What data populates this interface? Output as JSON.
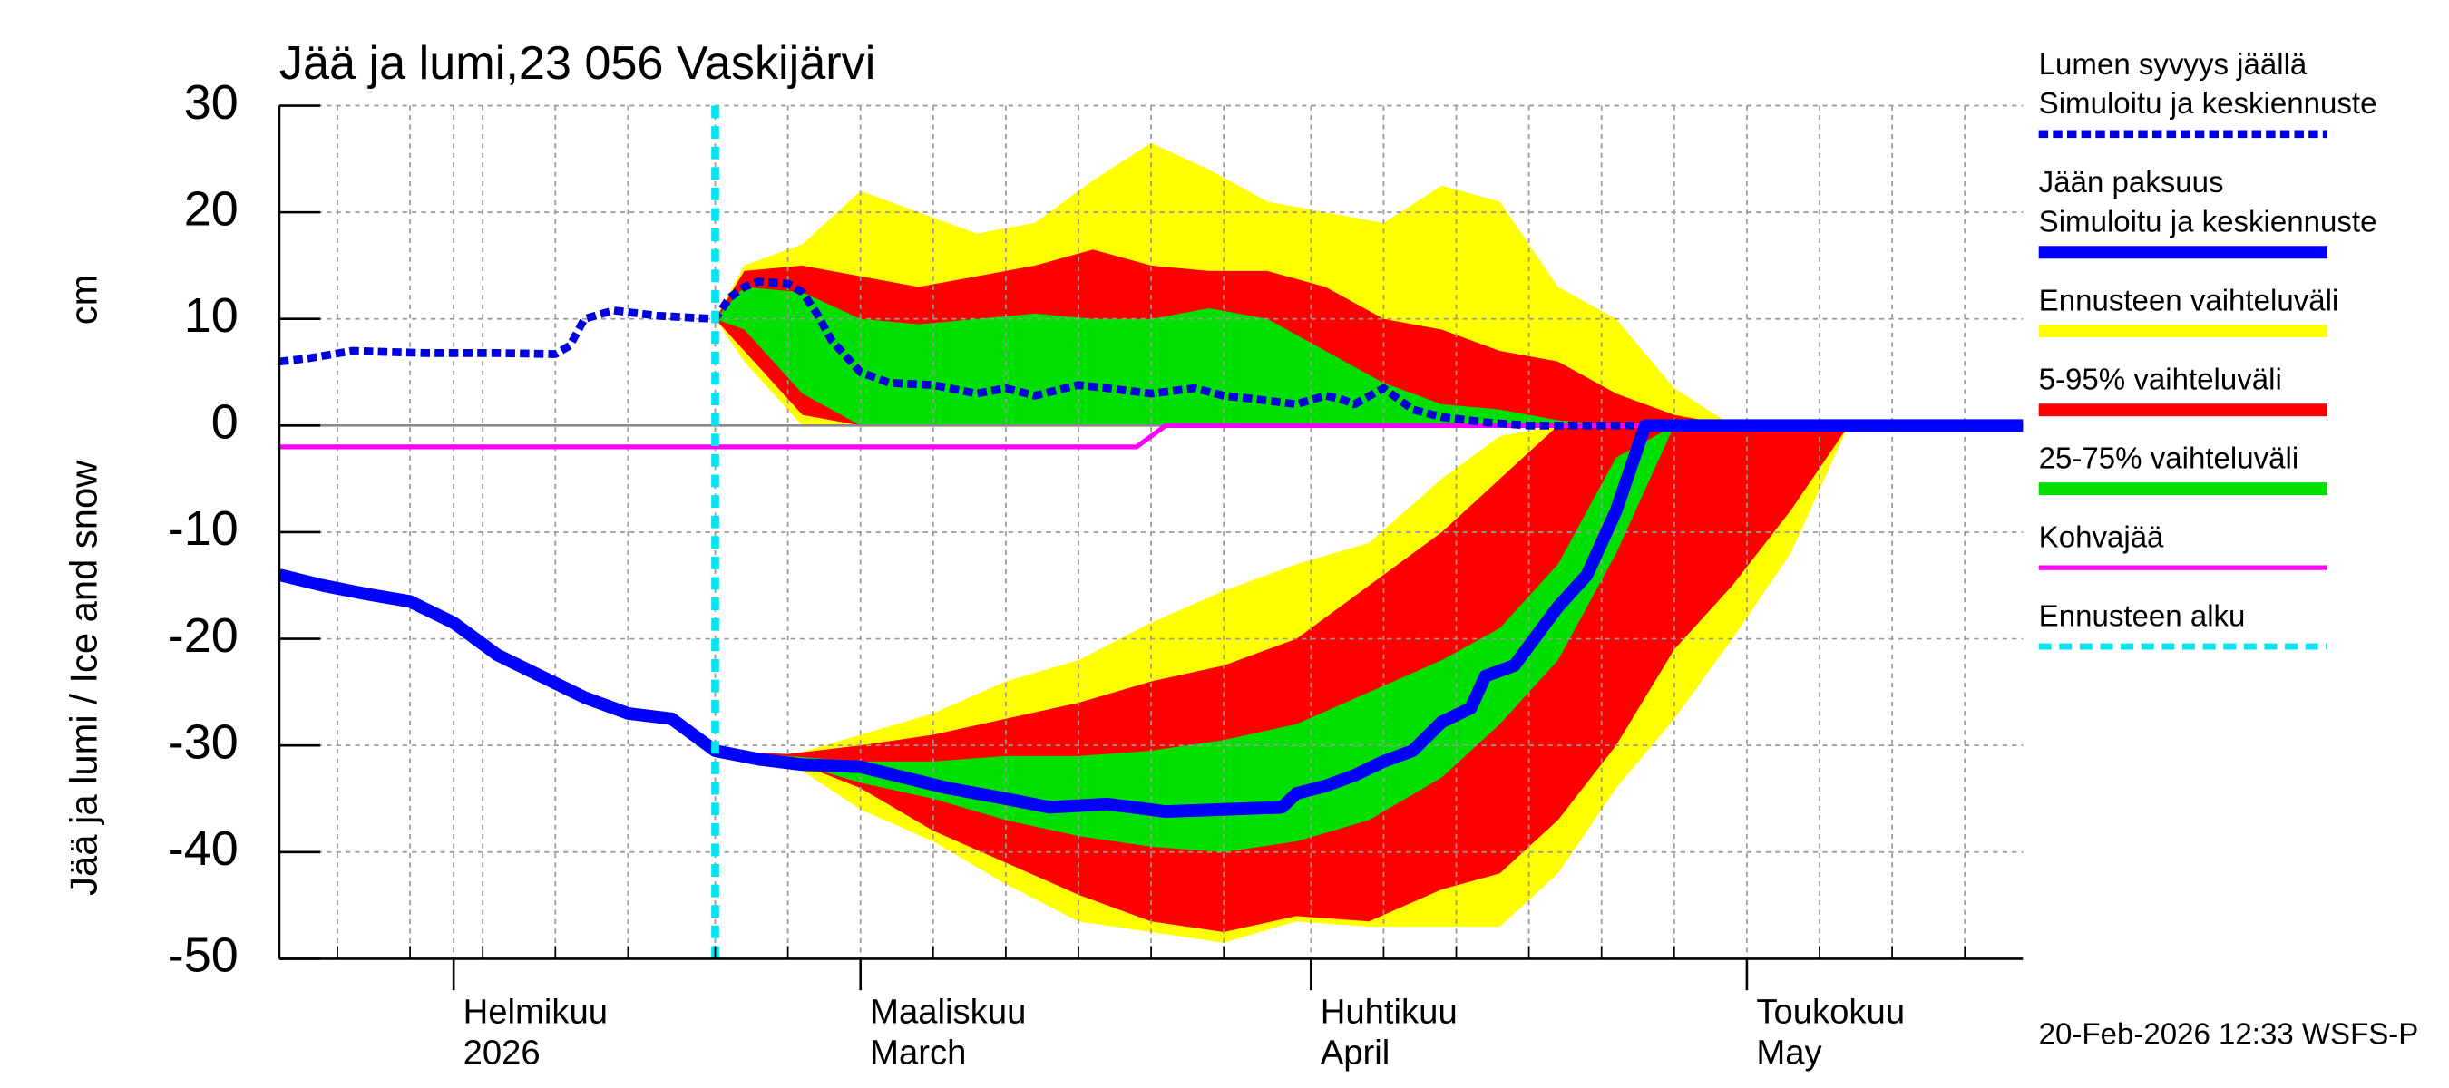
{
  "chart_data": {
    "type": "line",
    "title": "Jää ja lumi,23 056 Vaskijärvi",
    "ylabel": "Jää ja lumi / Ice and snow",
    "yunit": "cm",
    "footer": "20-Feb-2026 12:33 WSFS-P",
    "xlim": [
      0,
      120
    ],
    "ylim": [
      -50,
      30
    ],
    "yticks": [
      -50,
      -40,
      -30,
      -20,
      -10,
      0,
      10,
      20,
      30
    ],
    "xticks": [
      {
        "value": 12,
        "label": [
          "Helmikuu",
          "2026"
        ]
      },
      {
        "value": 40,
        "label": [
          "Maaliskuu",
          "March"
        ]
      },
      {
        "value": 71,
        "label": [
          "Huhtikuu",
          "April"
        ]
      },
      {
        "value": 101,
        "label": [
          "Toukokuu",
          "May"
        ]
      }
    ],
    "xminorticks": [
      4,
      9,
      14,
      19,
      24,
      30,
      35,
      45,
      50,
      55,
      60,
      65,
      76,
      81,
      86,
      91,
      96,
      106,
      111,
      116
    ],
    "grid": true,
    "series": [
      {
        "name": "Ennusteen vaihteluväli",
        "type": "band",
        "color": "#ffff00",
        "pieces": [
          {
            "x": [
              30,
              32,
              36,
              40,
              44,
              48,
              52,
              56,
              60,
              64,
              68,
              72,
              76,
              80,
              84,
              88,
              92,
              96,
              100
            ],
            "upper": [
              10,
              15,
              17,
              22,
              20,
              18,
              19,
              23,
              26.5,
              24,
              21,
              20,
              19,
              22.5,
              21,
              13,
              10,
              3.5,
              0
            ],
            "lower": [
              10,
              6,
              0,
              0,
              0,
              0,
              0,
              0,
              0,
              0,
              0,
              0,
              0,
              0,
              0,
              0,
              0,
              0,
              0
            ]
          },
          {
            "x": [
              30,
              35,
              40,
              45,
              50,
              55,
              60,
              65,
              70,
              75,
              80,
              84,
              88,
              92,
              96,
              100,
              104,
              108
            ],
            "upper": [
              -30.5,
              -31,
              -29,
              -27,
              -24,
              -22,
              -18.5,
              -15.5,
              -13,
              -11,
              -5,
              -1,
              0,
              0,
              0,
              0,
              0,
              0
            ],
            "lower": [
              -30.5,
              -31.5,
              -36,
              -39,
              -43,
              -46.5,
              -47.5,
              -48.5,
              -46.5,
              -47,
              -47,
              -47,
              -42,
              -34,
              -27.5,
              -20,
              -12,
              0
            ]
          }
        ]
      },
      {
        "name": "5-95% vaihteluväli",
        "type": "band",
        "color": "#ff0000",
        "pieces": [
          {
            "x": [
              30,
              32,
              36,
              40,
              44,
              48,
              52,
              56,
              60,
              64,
              68,
              72,
              76,
              80,
              84,
              88,
              92,
              96,
              100
            ],
            "upper": [
              10,
              14.5,
              15,
              14,
              13,
              14,
              15,
              16.5,
              15,
              14.5,
              14.5,
              13,
              10,
              9,
              7,
              6,
              3,
              1,
              0
            ],
            "lower": [
              10,
              7,
              1,
              0,
              0,
              0,
              0,
              0,
              0,
              0,
              0,
              0,
              0,
              0,
              0,
              0,
              0,
              0,
              0
            ]
          },
          {
            "x": [
              30,
              35,
              40,
              45,
              50,
              55,
              60,
              65,
              70,
              75,
              80,
              84,
              88,
              92,
              96,
              100,
              104,
              108
            ],
            "upper": [
              -30.5,
              -30.8,
              -30,
              -29,
              -27.5,
              -26,
              -24,
              -22.5,
              -20,
              -15,
              -10,
              -5,
              0,
              0,
              0,
              0,
              0,
              0
            ],
            "lower": [
              -30.5,
              -31.3,
              -34,
              -38,
              -41,
              -44,
              -46.5,
              -47.5,
              -46,
              -46.5,
              -43.5,
              -42,
              -37,
              -30,
              -21,
              -15,
              -8,
              0
            ]
          }
        ]
      },
      {
        "name": "25-75% vaihteluväli",
        "type": "band",
        "color": "#00e000",
        "pieces": [
          {
            "x": [
              30,
              32,
              36,
              40,
              44,
              48,
              52,
              56,
              60,
              64,
              68,
              72,
              76,
              80,
              84,
              88,
              92,
              96,
              100
            ],
            "upper": [
              10,
              13,
              12.5,
              10,
              9.5,
              10,
              10.5,
              10,
              10,
              11,
              10,
              7,
              4,
              2,
              1.5,
              0.5,
              0,
              0,
              0
            ],
            "lower": [
              10,
              9,
              3,
              0,
              0,
              0,
              0,
              0,
              0,
              0,
              0,
              0,
              0,
              0,
              0,
              0,
              0,
              0,
              0
            ]
          },
          {
            "x": [
              30,
              35,
              40,
              45,
              50,
              55,
              60,
              65,
              70,
              75,
              80,
              84,
              88,
              92,
              96,
              100,
              104,
              108
            ],
            "upper": [
              -30.5,
              -31,
              -31.5,
              -31.5,
              -31,
              -31,
              -30.5,
              -29.5,
              -28,
              -25,
              -22,
              -19,
              -13,
              -3,
              0,
              0,
              0,
              0
            ],
            "lower": [
              -30.5,
              -31.5,
              -33.5,
              -35,
              -37,
              -38.5,
              -39.5,
              -40,
              -39,
              -37,
              -33,
              -28,
              -22,
              -12,
              0,
              0,
              0,
              0
            ]
          }
        ]
      },
      {
        "name": "Kohvajää",
        "type": "line",
        "color": "#ff00ff",
        "width": 3,
        "x": [
          0,
          59,
          61,
          120
        ],
        "values": [
          -2,
          -2,
          0,
          0
        ]
      },
      {
        "name": [
          "Lumen syvyys jäällä",
          "Simuloitu ja keskiennuste"
        ],
        "type": "line",
        "color": "#0000dd",
        "width": 5,
        "dashed": true,
        "x": [
          0,
          2,
          5,
          10,
          15,
          19,
          20,
          21,
          23,
          26,
          30,
          31,
          32,
          33,
          35,
          36,
          37,
          38,
          40,
          42,
          45,
          48,
          50,
          52,
          55,
          57,
          60,
          63,
          65,
          67,
          70,
          72,
          73,
          74,
          76,
          78,
          80,
          83,
          86,
          90,
          120
        ],
        "values": [
          6,
          6.3,
          7,
          6.8,
          6.8,
          6.7,
          7.5,
          10,
          10.8,
          10.3,
          10,
          12,
          13,
          13.5,
          13.3,
          12.5,
          10.5,
          8,
          5,
          4,
          3.8,
          3,
          3.5,
          2.8,
          3.8,
          3.5,
          3,
          3.5,
          2.8,
          2.5,
          2,
          2.8,
          2.5,
          2,
          3.5,
          1.5,
          0.8,
          0.3,
          0,
          0,
          0
        ]
      },
      {
        "name": [
          "Jään paksuus",
          "Simuloitu ja keskiennuste"
        ],
        "type": "line",
        "color": "#0000ff",
        "width": 8,
        "x": [
          0,
          3,
          6,
          9,
          12,
          15,
          18,
          21,
          24,
          27,
          30,
          33,
          36,
          40,
          43,
          46,
          50,
          53,
          57,
          61,
          65,
          69,
          70,
          72,
          74,
          76,
          78,
          80,
          82,
          83,
          85,
          88,
          90,
          92,
          94,
          120
        ],
        "values": [
          -14,
          -15,
          -15.8,
          -16.5,
          -18.5,
          -21.5,
          -23.5,
          -25.5,
          -27,
          -27.5,
          -30.5,
          -31.3,
          -31.8,
          -32,
          -33,
          -34,
          -35,
          -35.8,
          -35.5,
          -36.2,
          -36,
          -35.8,
          -34.5,
          -33.8,
          -32.8,
          -31.5,
          -30.5,
          -27.8,
          -26.5,
          -23.5,
          -22.5,
          -17,
          -14,
          -8,
          0,
          0
        ]
      }
    ],
    "legend_order": [
      4,
      5,
      0,
      1,
      2,
      3
    ],
    "forecast_start": {
      "name": "Ennusteen alku",
      "x": 30,
      "color": "#00e5ee"
    }
  }
}
